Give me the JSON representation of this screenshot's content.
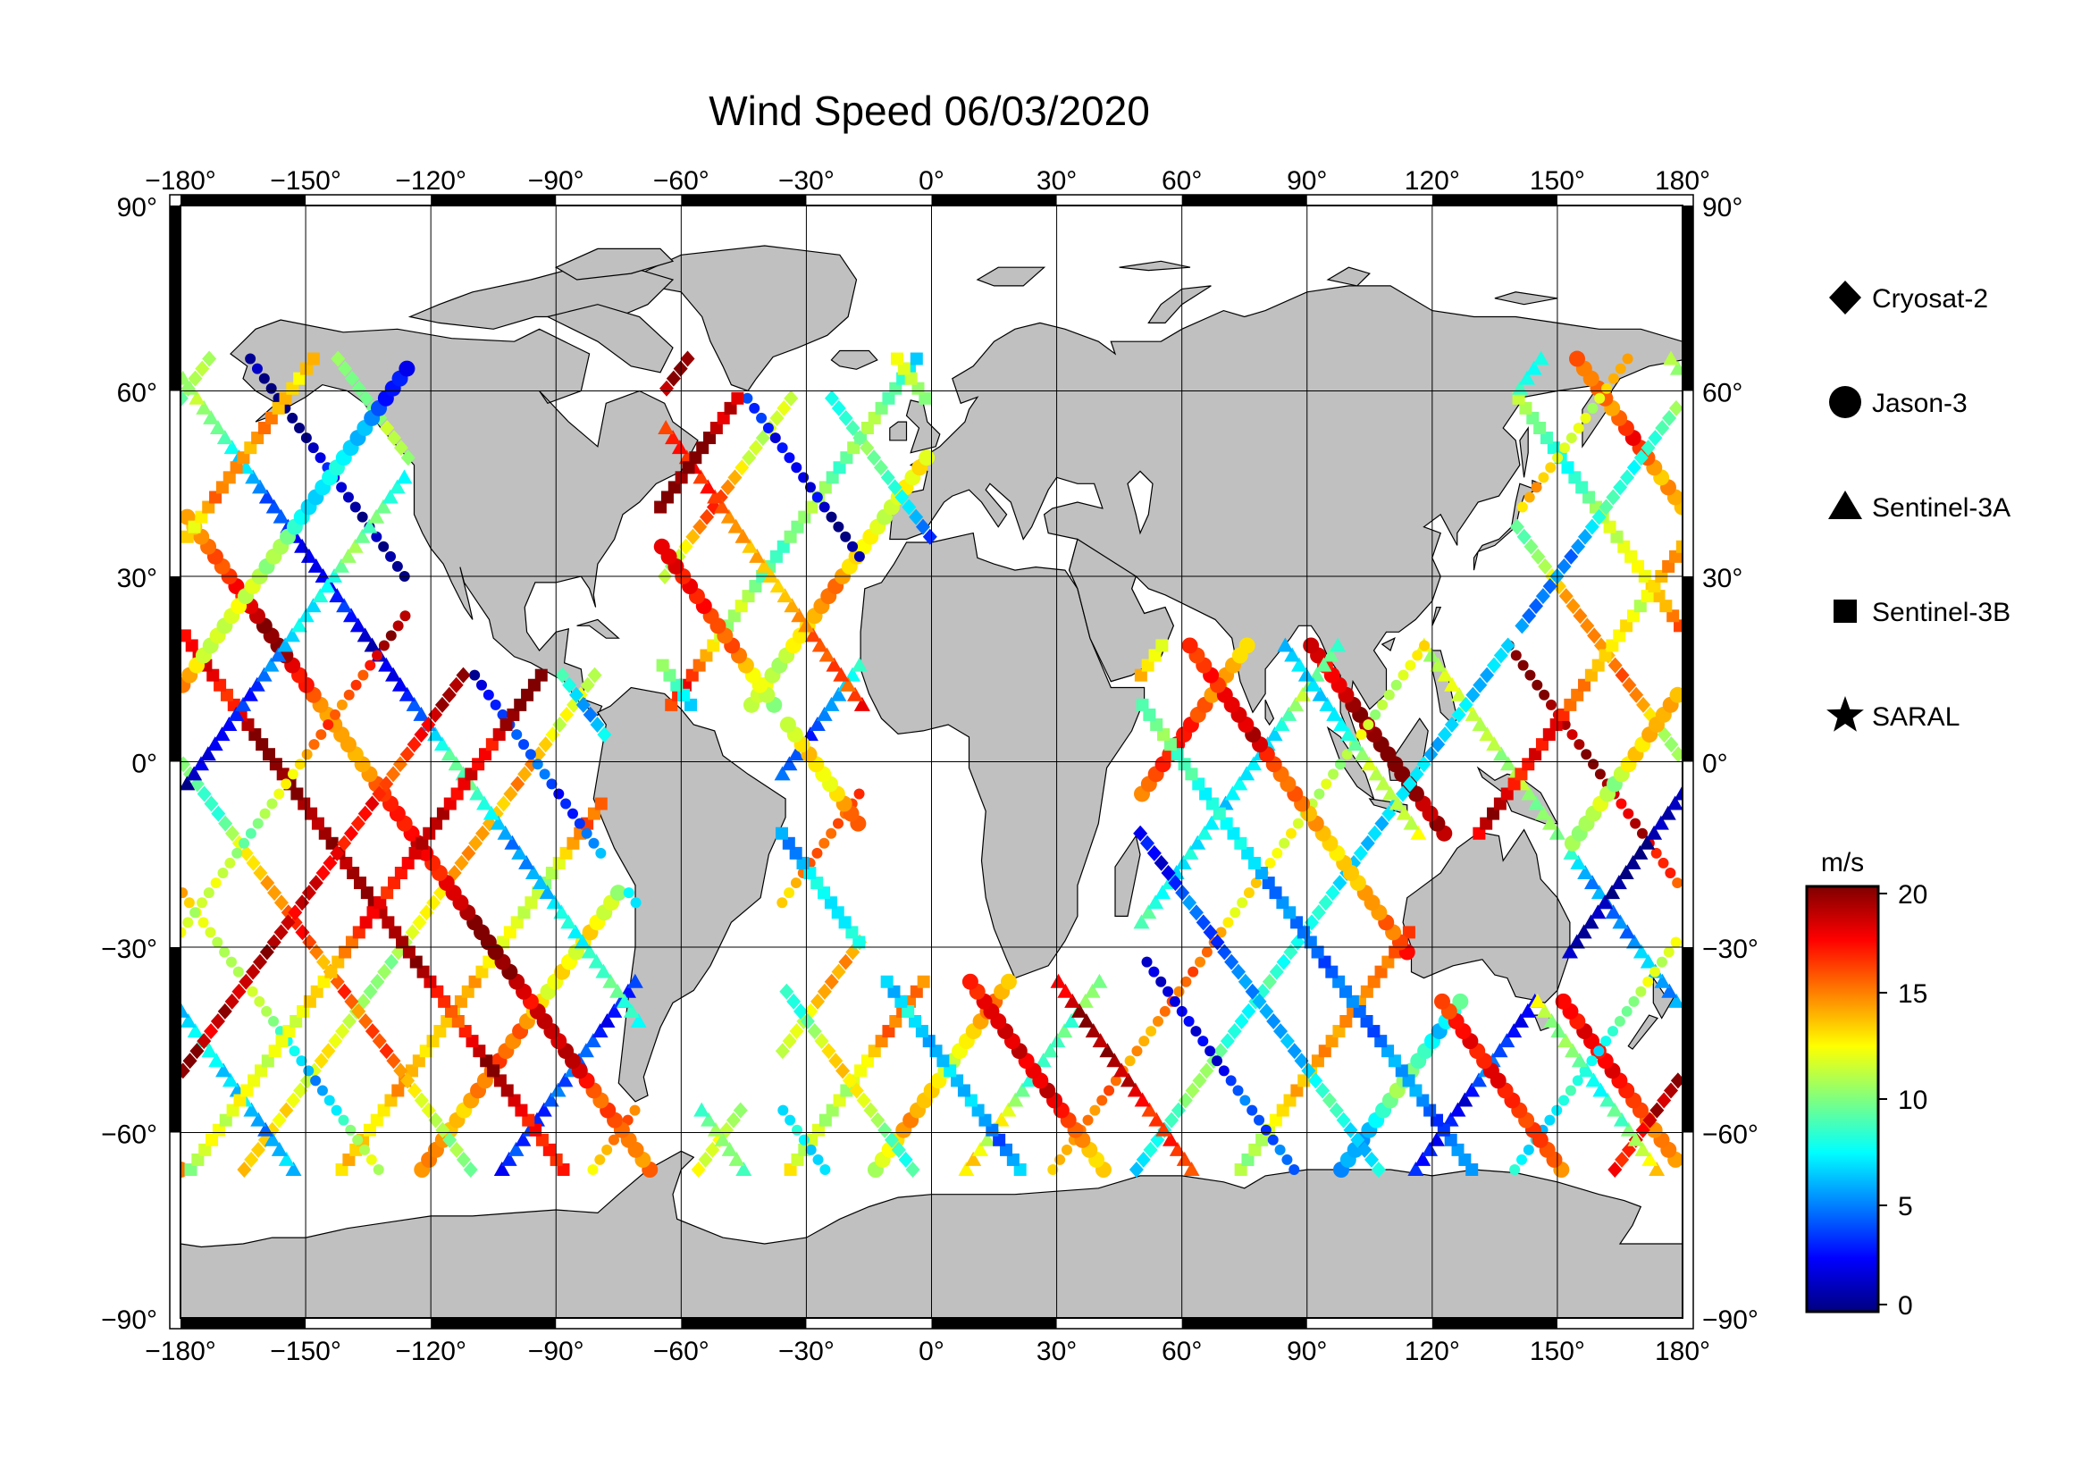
{
  "title": "Wind Speed 06/03/2020",
  "degree_symbol": "°",
  "lon_ticks": [
    -180,
    -150,
    -120,
    -90,
    -60,
    -30,
    0,
    30,
    60,
    90,
    120,
    150,
    180
  ],
  "lat_ticks": [
    90,
    60,
    30,
    0,
    -30,
    -60,
    -90
  ],
  "lon_tick_labels": [
    "−180°",
    "−150°",
    "−120°",
    "−90°",
    "−60°",
    "−30°",
    "0°",
    "30°",
    "60°",
    "90°",
    "120°",
    "150°",
    "180°"
  ],
  "lat_tick_labels": [
    "90°",
    "60°",
    "30°",
    "0°",
    "−30°",
    "−60°",
    "−90°"
  ],
  "legend": [
    {
      "symbol": "diamond",
      "label": "Cryosat-2"
    },
    {
      "symbol": "circle",
      "label": "Jason-3"
    },
    {
      "symbol": "triangle",
      "label": "Sentinel-3A"
    },
    {
      "symbol": "square",
      "label": "Sentinel-3B"
    },
    {
      "symbol": "star",
      "label": "SARAL"
    }
  ],
  "colorbar": {
    "unit": "m/s",
    "min": 0,
    "max": 20,
    "ticks": [
      0,
      5,
      10,
      15,
      20
    ],
    "tick_labels": [
      "0",
      "5",
      "10",
      "15",
      "20"
    ],
    "colormap": "jet"
  },
  "colors": {
    "land": "#c0c0c0",
    "ocean": "#ffffff",
    "frame": "#000000",
    "grid": "#000000"
  }
}
